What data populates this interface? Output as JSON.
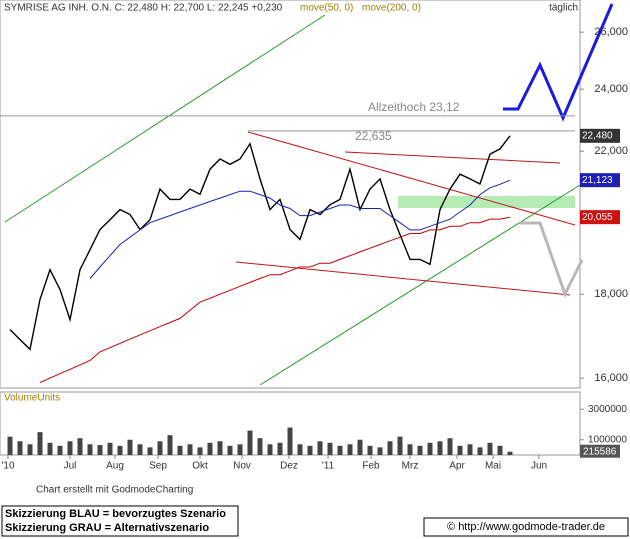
{
  "chart_data": {
    "type": "line",
    "header": "SYMRISE AG INH. O.N. C: 22,480 H: 22,700 L: 22,245 +0,230",
    "header_ma50": "move(50, 0)",
    "header_ma200": "move(200, 0)",
    "interval": "täglich",
    "log_scale": true,
    "x": [
      0,
      1,
      2,
      3,
      4,
      5,
      6,
      7,
      8,
      9,
      10,
      11,
      12,
      13,
      14,
      15,
      16,
      17,
      18,
      19,
      20,
      21,
      22,
      23,
      24,
      25,
      26,
      27,
      28,
      29,
      30,
      31,
      32,
      33,
      34,
      35,
      36,
      37,
      38,
      39,
      40,
      41,
      42,
      43,
      44,
      45,
      46,
      47,
      48,
      49,
      50
    ],
    "xlim": [
      -1,
      57
    ],
    "xticks": [
      {
        "value": -0.2,
        "label": "'10"
      },
      {
        "value": 6,
        "label": "Jul"
      },
      {
        "value": 10.5,
        "label": "Aug"
      },
      {
        "value": 14.8,
        "label": "Sep"
      },
      {
        "value": 19,
        "label": "Okt"
      },
      {
        "value": 23.2,
        "label": "Nov"
      },
      {
        "value": 27.9,
        "label": "Dez"
      },
      {
        "value": 31.8,
        "label": "'11"
      },
      {
        "value": 36.1,
        "label": "Feb"
      },
      {
        "value": 40,
        "label": "Mrz"
      },
      {
        "value": 44.7,
        "label": "Apr"
      },
      {
        "value": 48.3,
        "label": "Mai"
      },
      {
        "value": 52.9,
        "label": "Jun"
      }
    ],
    "ylim": [
      15.78,
      27.2
    ],
    "yticks": [
      {
        "value": 16,
        "label": "16,000"
      },
      {
        "value": 18,
        "label": "18,000"
      },
      {
        "value": 22,
        "label": "22,000"
      },
      {
        "value": 24,
        "label": "24,000"
      },
      {
        "value": 26,
        "label": "26,000"
      }
    ],
    "series": [
      {
        "name": "SYMRISE AG INH. O.N.",
        "color": "#000000",
        "values": [
          17.13,
          16.89,
          16.66,
          17.87,
          18.63,
          18.12,
          17.37,
          18.63,
          19.16,
          19.71,
          19.98,
          20.27,
          20.13,
          19.71,
          19.98,
          20.86,
          20.56,
          20.56,
          20.86,
          20.71,
          21.45,
          21.76,
          21.6,
          21.76,
          22.23,
          21.16,
          20.27,
          20.56,
          19.71,
          19.44,
          20.27,
          20.13,
          20.41,
          20.56,
          21.45,
          20.27,
          20.86,
          21.16,
          20.27,
          19.57,
          18.9,
          18.9,
          18.77,
          20.27,
          20.86,
          21.3,
          21.16,
          21.01,
          21.91,
          22.07,
          22.48
        ]
      },
      {
        "name": "move(50, 0)",
        "color": "#2020b0",
        "values": [
          null,
          null,
          null,
          null,
          null,
          null,
          null,
          null,
          18.4,
          18.7,
          19.0,
          19.3,
          19.5,
          19.7,
          19.9,
          20.0,
          20.1,
          20.2,
          20.3,
          20.4,
          20.5,
          20.6,
          20.7,
          20.8,
          20.8,
          20.7,
          20.6,
          20.4,
          20.3,
          20.1,
          20.1,
          20.2,
          20.3,
          20.4,
          20.4,
          20.3,
          20.3,
          20.3,
          20.1,
          19.9,
          19.7,
          19.7,
          19.8,
          19.9,
          20.0,
          20.2,
          20.4,
          20.7,
          20.9,
          21.0,
          21.123
        ]
      },
      {
        "name": "move(200, 0)",
        "color": "#c00000",
        "values": [
          null,
          null,
          null,
          15.9,
          16.0,
          16.1,
          16.2,
          16.3,
          16.4,
          16.6,
          16.7,
          16.8,
          16.9,
          17.0,
          17.1,
          17.2,
          17.3,
          17.4,
          17.6,
          17.8,
          17.9,
          18.0,
          18.1,
          18.2,
          18.3,
          18.4,
          18.5,
          18.5,
          18.6,
          18.7,
          18.7,
          18.8,
          18.8,
          18.9,
          19.0,
          19.1,
          19.2,
          19.3,
          19.4,
          19.5,
          19.6,
          19.6,
          19.7,
          19.7,
          19.8,
          19.8,
          19.9,
          19.9,
          20.0,
          20.0,
          20.055
        ]
      }
    ],
    "last_labels": [
      {
        "value": 22.48,
        "label": "22,480",
        "color": "#333333"
      },
      {
        "value": 21.123,
        "label": "21,123",
        "color": "#2020b0"
      },
      {
        "value": 20.055,
        "label": "20,055",
        "color": "#d01010"
      }
    ],
    "levels": [
      {
        "value": 23.12,
        "label": "Allzeithoch  23,12"
      },
      {
        "value": 22.635,
        "label": "22,635"
      }
    ],
    "volume": {
      "label": "VolumeUnits",
      "ylim": [
        0,
        4130000
      ],
      "yticks": [
        1000000,
        3000000
      ],
      "color": "#444444",
      "values": [
        1200000,
        900000,
        700000,
        1500000,
        800000,
        600000,
        900000,
        1100000,
        700000,
        650000,
        800000,
        600000,
        1000000,
        700000,
        500000,
        900000,
        1300000,
        600000,
        700000,
        500000,
        800000,
        900000,
        600000,
        700000,
        1600000,
        1100000,
        700000,
        800000,
        1800000,
        700000,
        600000,
        900000,
        800000,
        600000,
        700000,
        1000000,
        600000,
        500000,
        900000,
        1200000,
        700000,
        600000,
        800000,
        900000,
        1100000,
        600000,
        700000,
        500000,
        800000,
        600000,
        215586
      ],
      "last_label": "215586"
    },
    "credit": "Chart erstellt mit GodmodeCharting",
    "legend_blue": "Skizzierung BLAU = bevorzugtes Szenario",
    "legend_gray": "Skizzierung GRAU = Alternativszenario",
    "source": "© http://www.godmode-trader.de"
  }
}
